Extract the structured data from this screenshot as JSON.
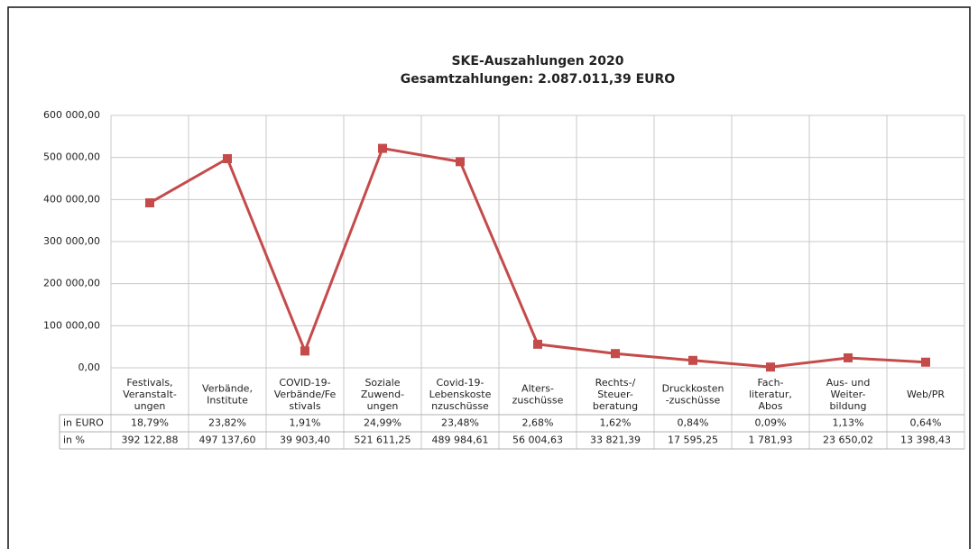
{
  "chart_data": {
    "type": "line",
    "title": "SKE-Auszahlungen 2020",
    "subtitle": "Gesamtzahlungen: 2.087.011,39 EURO",
    "categories": [
      [
        "Festivals,",
        "Veranstalt-",
        "ungen"
      ],
      [
        "Verbände,",
        "Institute"
      ],
      [
        "COVID-19-",
        "Verbände/Fe",
        "stivals"
      ],
      [
        "Soziale",
        "Zuwend-",
        "ungen"
      ],
      [
        "Covid-19-",
        "Lebenskoste",
        "nzuschüsse"
      ],
      [
        "Alters-",
        "zuschüsse"
      ],
      [
        "Rechts-/",
        "Steuer-",
        "beratung"
      ],
      [
        "Druckkosten",
        "-zuschüsse"
      ],
      [
        "Fach-",
        "literatur,",
        "Abos"
      ],
      [
        "Aus- und",
        "Weiter-",
        "bildung"
      ],
      [
        "Web/PR"
      ]
    ],
    "series": [
      {
        "name": "in %",
        "color": "#c54b4b",
        "values": [
          392122.88,
          497137.6,
          39903.4,
          521611.25,
          489984.61,
          56004.63,
          33821.39,
          17595.25,
          1781.93,
          23650.02,
          13398.43
        ],
        "value_labels": [
          "392 122,88",
          "497 137,60",
          "39 903,40",
          "521 611,25",
          "489 984,61",
          "56 004,63",
          "33 821,39",
          "17 595,25",
          "1 781,93",
          "23 650,02",
          "13 398,43"
        ]
      }
    ],
    "share_row": {
      "name": "in EURO",
      "labels": [
        "18,79%",
        "23,82%",
        "1,91%",
        "24,99%",
        "23,48%",
        "2,68%",
        "1,62%",
        "0,84%",
        "0,09%",
        "1,13%",
        "0,64%"
      ]
    },
    "ylim": [
      0,
      600000
    ],
    "yticks": [
      {
        "value": 0,
        "label": "0,00"
      },
      {
        "value": 100000,
        "label": "100 000,00"
      },
      {
        "value": 200000,
        "label": "200 000,00"
      },
      {
        "value": 300000,
        "label": "300 000,00"
      },
      {
        "value": 400000,
        "label": "400 000,00"
      },
      {
        "value": 500000,
        "label": "500 000,00"
      },
      {
        "value": 600000,
        "label": "600 000,00"
      }
    ],
    "grid": true
  }
}
